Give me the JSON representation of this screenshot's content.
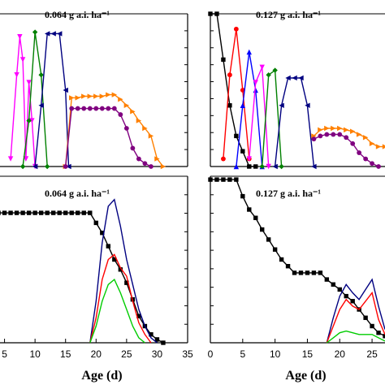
{
  "chart_data": [
    {
      "id": "top-left",
      "type": "line",
      "title": "0.064 g a.i. ha⁻¹",
      "xlim": [
        0,
        35
      ],
      "ylim": [
        0,
        1
      ],
      "series": [
        {
          "color": "#ff00ff",
          "marker": "tri-down",
          "x": [
            6,
            7,
            7.5,
            8,
            8.5
          ],
          "y": [
            0.05,
            0.6,
            0.85,
            0.7,
            0.05
          ]
        },
        {
          "color": "#ff00ff",
          "marker": "tri-down",
          "x": [
            8.5,
            9,
            9.5,
            10
          ],
          "y": [
            0.05,
            0.55,
            0.3,
            0.0
          ]
        },
        {
          "color": "#008000",
          "marker": "diamond",
          "x": [
            8,
            9,
            10,
            11,
            12
          ],
          "y": [
            0.0,
            0.3,
            0.88,
            0.6,
            0.0
          ]
        },
        {
          "color": "#000080",
          "marker": "tri-left",
          "x": [
            10,
            11,
            12,
            13,
            14,
            15,
            15.5
          ],
          "y": [
            0.0,
            0.4,
            0.87,
            0.87,
            0.87,
            0.5,
            0.0
          ]
        },
        {
          "color": "#ff8000",
          "marker": "tri-right",
          "x": [
            15,
            16,
            17,
            18,
            19,
            20,
            21,
            22,
            23,
            24,
            25,
            26,
            27,
            28,
            29,
            30,
            31
          ],
          "y": [
            0.0,
            0.45,
            0.45,
            0.46,
            0.46,
            0.46,
            0.46,
            0.47,
            0.47,
            0.44,
            0.4,
            0.36,
            0.3,
            0.25,
            0.2,
            0.05,
            0.0
          ]
        },
        {
          "color": "#800080",
          "marker": "circle",
          "x": [
            15,
            16,
            17,
            18,
            19,
            20,
            21,
            22,
            23,
            24,
            25,
            26,
            27,
            28,
            29
          ],
          "y": [
            0.0,
            0.38,
            0.38,
            0.38,
            0.38,
            0.38,
            0.38,
            0.38,
            0.38,
            0.34,
            0.25,
            0.12,
            0.05,
            0.02,
            0.0
          ]
        }
      ]
    },
    {
      "id": "top-right",
      "type": "line",
      "title": "0.127 g a.i. ha⁻¹",
      "xlim": [
        0,
        27
      ],
      "ylim": [
        0,
        1
      ],
      "series": [
        {
          "color": "#000000",
          "marker": "square",
          "x": [
            0,
            1,
            2,
            3,
            4,
            5,
            6,
            7
          ],
          "y": [
            1.0,
            1.0,
            0.7,
            0.4,
            0.2,
            0.1,
            0.0,
            0.0
          ]
        },
        {
          "color": "#ff0000",
          "marker": "circle",
          "x": [
            2,
            3,
            4,
            5,
            6
          ],
          "y": [
            0.05,
            0.6,
            0.9,
            0.5,
            0.05
          ]
        },
        {
          "color": "#0000ff",
          "marker": "tri-up",
          "x": [
            4,
            5,
            6,
            7,
            8
          ],
          "y": [
            0.0,
            0.4,
            0.75,
            0.5,
            0.0
          ]
        },
        {
          "color": "#ff00ff",
          "marker": "tri-down",
          "x": [
            6,
            7,
            8,
            9
          ],
          "y": [
            0.05,
            0.55,
            0.65,
            0.0
          ]
        },
        {
          "color": "#008000",
          "marker": "diamond",
          "x": [
            8,
            9,
            10,
            11
          ],
          "y": [
            0.0,
            0.6,
            0.63,
            0.0
          ]
        },
        {
          "color": "#000080",
          "marker": "tri-left",
          "x": [
            10,
            11,
            12,
            13,
            14,
            15,
            16
          ],
          "y": [
            0.0,
            0.4,
            0.58,
            0.58,
            0.58,
            0.4,
            0.0
          ]
        },
        {
          "color": "#ff8000",
          "marker": "tri-right",
          "x": [
            16,
            17,
            18,
            19,
            20,
            21,
            22,
            23,
            24,
            25,
            26,
            27
          ],
          "y": [
            0.2,
            0.24,
            0.25,
            0.25,
            0.25,
            0.24,
            0.23,
            0.21,
            0.19,
            0.15,
            0.13,
            0.13
          ]
        },
        {
          "color": "#800080",
          "marker": "circle",
          "x": [
            16,
            17,
            18,
            19,
            20,
            21,
            22,
            23,
            24,
            25,
            26
          ],
          "y": [
            0.18,
            0.2,
            0.21,
            0.21,
            0.21,
            0.19,
            0.15,
            0.09,
            0.05,
            0.02,
            0.0
          ]
        }
      ]
    },
    {
      "id": "bottom-left",
      "type": "line",
      "title": "0.064 g a.i. ha⁻¹",
      "xlabel": "Age (d)",
      "xlim": [
        0,
        35
      ],
      "ylim": [
        0,
        1
      ],
      "xticks": [
        5,
        10,
        15,
        20,
        25,
        30,
        35
      ],
      "series": [
        {
          "color": "#000000",
          "marker": "square",
          "x": [
            0,
            1,
            2,
            3,
            4,
            5,
            6,
            7,
            8,
            9,
            10,
            11,
            12,
            13,
            14,
            15,
            16,
            17,
            18,
            19,
            20,
            21,
            22,
            23,
            24,
            25,
            26,
            27,
            28,
            29,
            30,
            31
          ],
          "y": [
            0.85,
            0.8,
            0.78,
            0.78,
            0.78,
            0.78,
            0.78,
            0.78,
            0.78,
            0.78,
            0.78,
            0.78,
            0.78,
            0.78,
            0.78,
            0.78,
            0.78,
            0.78,
            0.78,
            0.78,
            0.72,
            0.66,
            0.58,
            0.5,
            0.44,
            0.36,
            0.26,
            0.16,
            0.1,
            0.05,
            0.02,
            0.0
          ]
        },
        {
          "color": "#000080",
          "marker": "none",
          "x": [
            19,
            20,
            21,
            22,
            23,
            24,
            25,
            26,
            27,
            28,
            29,
            30
          ],
          "y": [
            0.0,
            0.25,
            0.6,
            0.82,
            0.86,
            0.7,
            0.5,
            0.35,
            0.2,
            0.1,
            0.03,
            0.0
          ]
        },
        {
          "color": "#ff0000",
          "marker": "none",
          "x": [
            19,
            20,
            21,
            22,
            23,
            24,
            25,
            26,
            27,
            28,
            29
          ],
          "y": [
            0.0,
            0.15,
            0.38,
            0.5,
            0.53,
            0.45,
            0.4,
            0.25,
            0.12,
            0.05,
            0.0
          ]
        },
        {
          "color": "#00cc00",
          "marker": "none",
          "x": [
            19,
            20,
            21,
            22,
            23,
            24,
            25,
            26,
            27,
            28
          ],
          "y": [
            0.0,
            0.1,
            0.25,
            0.35,
            0.38,
            0.3,
            0.2,
            0.1,
            0.03,
            0.0
          ]
        }
      ]
    },
    {
      "id": "bottom-right",
      "type": "line",
      "title": "0.127 g a.i. ha⁻¹",
      "xlabel": "Age (d)",
      "xlim": [
        0,
        27
      ],
      "ylim": [
        0,
        1
      ],
      "xticks": [
        0,
        5,
        10,
        15,
        20,
        25
      ],
      "series": [
        {
          "color": "#000000",
          "marker": "square",
          "x": [
            0,
            1,
            2,
            3,
            4,
            5,
            6,
            7,
            8,
            9,
            10,
            11,
            12,
            13,
            14,
            15,
            16,
            17,
            18,
            19,
            20,
            21,
            22,
            23,
            24,
            25,
            26,
            27
          ],
          "y": [
            0.98,
            0.98,
            0.98,
            0.98,
            0.98,
            0.88,
            0.8,
            0.75,
            0.68,
            0.62,
            0.56,
            0.5,
            0.46,
            0.42,
            0.42,
            0.42,
            0.42,
            0.42,
            0.38,
            0.35,
            0.32,
            0.28,
            0.25,
            0.2,
            0.15,
            0.1,
            0.06,
            0.04
          ]
        },
        {
          "color": "#000080",
          "marker": "none",
          "x": [
            18,
            19,
            20,
            21,
            22,
            23,
            24,
            25,
            26,
            27
          ],
          "y": [
            0.0,
            0.15,
            0.28,
            0.35,
            0.3,
            0.26,
            0.32,
            0.38,
            0.22,
            0.08
          ]
        },
        {
          "color": "#ff0000",
          "marker": "none",
          "x": [
            18,
            19,
            20,
            21,
            22,
            23,
            24,
            25,
            26,
            27
          ],
          "y": [
            0.0,
            0.1,
            0.2,
            0.26,
            0.22,
            0.2,
            0.25,
            0.3,
            0.14,
            0.05
          ]
        },
        {
          "color": "#00cc00",
          "marker": "none",
          "x": [
            18,
            19,
            20,
            21,
            22,
            23,
            24,
            25,
            26,
            27
          ],
          "y": [
            0.0,
            0.03,
            0.06,
            0.07,
            0.06,
            0.05,
            0.05,
            0.05,
            0.03,
            0.01
          ]
        }
      ]
    }
  ]
}
